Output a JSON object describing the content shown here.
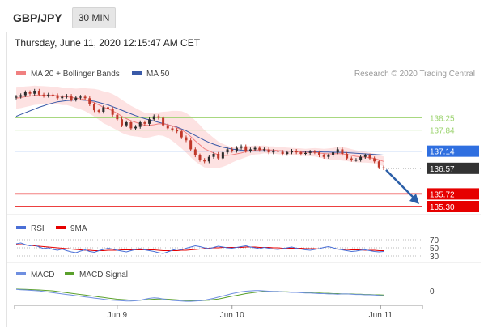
{
  "header": {
    "symbol": "GBP/JPY",
    "interval": "30 MIN",
    "timestamp": "Thursday, June 11, 2020 12:15:47 AM CET"
  },
  "credit": "Research © 2020 Trading Central",
  "colors": {
    "up_candle": "#2b2b2b",
    "down_candle": "#c0392b",
    "ma20": "#f08080",
    "ma50": "#3a5aa8",
    "bollinger_fill": "#fde2e2",
    "resistance": "#9bd36e",
    "pivot": "#2f6fe0",
    "support": "#e60000",
    "last_price": "#333333",
    "arrow": "#2c5fa8",
    "rsi": "#4a6fd6",
    "rsi_ma": "#e60000",
    "macd": "#6f8fe0",
    "macd_signal": "#5aa02c"
  },
  "chart_data": [
    {
      "type": "line",
      "name": "price",
      "legend": [
        {
          "label": "MA 20 + Bollinger Bands",
          "color": "#f08080"
        },
        {
          "label": "MA 50",
          "color": "#3a5aa8"
        }
      ],
      "ylim": [
        135.3,
        139.15
      ],
      "close": [
        138.95,
        139.0,
        139.1,
        139.05,
        139.15,
        139.02,
        138.98,
        139.02,
        139.0,
        138.9,
        138.95,
        138.98,
        138.85,
        138.92,
        138.95,
        138.9,
        138.7,
        138.5,
        138.45,
        138.6,
        138.55,
        138.35,
        138.2,
        138.0,
        138.1,
        137.9,
        137.95,
        138.1,
        138.05,
        138.2,
        138.3,
        138.25,
        138.0,
        137.9,
        137.85,
        137.8,
        137.6,
        137.5,
        137.2,
        137.0,
        136.85,
        136.8,
        136.95,
        137.05,
        136.9,
        137.1,
        137.2,
        137.15,
        137.25,
        137.3,
        137.15,
        137.2,
        137.25,
        137.18,
        137.2,
        137.1,
        137.15,
        137.12,
        137.05,
        137.1,
        137.15,
        137.1,
        137.05,
        137.08,
        137.12,
        137.1,
        137.0,
        136.95,
        137.0,
        137.1,
        137.2,
        137.05,
        136.9,
        136.85,
        136.85,
        136.95,
        137.0,
        136.9,
        136.8,
        136.6,
        136.57
      ],
      "ma20": [
        138.9,
        138.92,
        138.95,
        138.97,
        139.0,
        139.0,
        139.0,
        139.0,
        139.0,
        138.98,
        138.95,
        138.95,
        138.93,
        138.9,
        138.88,
        138.85,
        138.8,
        138.75,
        138.68,
        138.6,
        138.55,
        138.48,
        138.4,
        138.3,
        138.22,
        138.15,
        138.1,
        138.05,
        138.0,
        138.0,
        138.02,
        138.05,
        138.05,
        138.02,
        137.98,
        137.92,
        137.85,
        137.75,
        137.62,
        137.48,
        137.35,
        137.22,
        137.15,
        137.08,
        137.02,
        137.0,
        137.0,
        137.02,
        137.05,
        137.08,
        137.12,
        137.15,
        137.18,
        137.18,
        137.2,
        137.18,
        137.18,
        137.16,
        137.15,
        137.14,
        137.13,
        137.12,
        137.11,
        137.1,
        137.1,
        137.1,
        137.08,
        137.06,
        137.05,
        137.05,
        137.06,
        137.05,
        137.03,
        137.0,
        136.97,
        136.95,
        136.94,
        136.92,
        136.9,
        136.85,
        136.8
      ],
      "ma50": [
        138.3,
        138.36,
        138.42,
        138.48,
        138.54,
        138.6,
        138.65,
        138.7,
        138.74,
        138.78,
        138.8,
        138.82,
        138.83,
        138.84,
        138.84,
        138.83,
        138.82,
        138.8,
        138.76,
        138.72,
        138.68,
        138.62,
        138.56,
        138.5,
        138.44,
        138.38,
        138.32,
        138.27,
        138.22,
        138.18,
        138.14,
        138.1,
        138.06,
        138.02,
        137.98,
        137.94,
        137.88,
        137.82,
        137.74,
        137.66,
        137.58,
        137.5,
        137.43,
        137.37,
        137.32,
        137.27,
        137.24,
        137.21,
        137.19,
        137.17,
        137.16,
        137.15,
        137.15,
        137.15,
        137.15,
        137.15,
        137.15,
        137.15,
        137.15,
        137.14,
        137.14,
        137.14,
        137.13,
        137.13,
        137.13,
        137.12,
        137.12,
        137.11,
        137.11,
        137.1,
        137.1,
        137.1,
        137.09,
        137.08,
        137.07,
        137.06,
        137.05,
        137.04,
        137.03,
        137.02,
        137.01
      ],
      "bb_width": [
        0.35,
        0.35,
        0.34,
        0.33,
        0.32,
        0.31,
        0.3,
        0.29,
        0.28,
        0.28,
        0.28,
        0.28,
        0.3,
        0.32,
        0.35,
        0.38,
        0.42,
        0.46,
        0.5,
        0.53,
        0.55,
        0.56,
        0.56,
        0.55,
        0.53,
        0.5,
        0.47,
        0.44,
        0.42,
        0.4,
        0.38,
        0.38,
        0.4,
        0.44,
        0.5,
        0.56,
        0.62,
        0.66,
        0.68,
        0.68,
        0.66,
        0.62,
        0.56,
        0.5,
        0.44,
        0.38,
        0.32,
        0.26,
        0.22,
        0.2,
        0.18,
        0.16,
        0.15,
        0.14,
        0.13,
        0.12,
        0.12,
        0.12,
        0.12,
        0.12,
        0.12,
        0.12,
        0.12,
        0.12,
        0.13,
        0.14,
        0.15,
        0.16,
        0.18,
        0.2,
        0.22,
        0.22,
        0.22,
        0.21,
        0.2,
        0.19,
        0.18,
        0.17,
        0.16,
        0.16,
        0.16
      ],
      "levels": [
        {
          "label": "138.25",
          "value": 138.25,
          "kind": "resistance"
        },
        {
          "label": "137.84",
          "value": 137.84,
          "kind": "resistance"
        },
        {
          "label": "137.14",
          "value": 137.14,
          "kind": "pivot"
        },
        {
          "label": "136.57",
          "value": 136.57,
          "kind": "last"
        },
        {
          "label": "135.72",
          "value": 135.72,
          "kind": "support"
        },
        {
          "label": "135.30",
          "value": 135.3,
          "kind": "support"
        }
      ],
      "x_ticks": [
        "Jun 9",
        "Jun 10",
        "Jun 11"
      ]
    },
    {
      "type": "line",
      "name": "RSI",
      "legend": [
        {
          "label": "RSI",
          "color": "#4a6fd6"
        },
        {
          "label": "9MA",
          "color": "#e60000"
        }
      ],
      "ylim": [
        30,
        70
      ],
      "tick_labels": [
        "70",
        "50",
        "30"
      ],
      "rsi": [
        60,
        62,
        58,
        55,
        57,
        52,
        48,
        50,
        46,
        44,
        47,
        43,
        40,
        38,
        42,
        45,
        41,
        39,
        43,
        46,
        49,
        47,
        44,
        42,
        40,
        43,
        46,
        48,
        45,
        43,
        41,
        38,
        36,
        40,
        44,
        47,
        45,
        49,
        52,
        55,
        53,
        50,
        48,
        51,
        54,
        52,
        50,
        49,
        51,
        53,
        55,
        52,
        50,
        48,
        51,
        49,
        47,
        46,
        48,
        50,
        52,
        49,
        47,
        45,
        44,
        46,
        48,
        51,
        53,
        50,
        47,
        45,
        43,
        41,
        42,
        44,
        45,
        43,
        41,
        40,
        41
      ],
      "ma9": [
        58,
        58,
        57,
        56,
        55,
        54,
        53,
        52,
        51,
        50,
        49,
        48,
        47,
        46,
        45,
        44,
        44,
        43,
        43,
        43,
        44,
        44,
        44,
        45,
        45,
        45,
        45,
        45,
        45,
        45,
        45,
        44,
        43,
        43,
        43,
        43,
        44,
        44,
        45,
        46,
        47,
        48,
        49,
        50,
        50,
        51,
        51,
        51,
        51,
        51,
        52,
        52,
        52,
        51,
        51,
        51,
        50,
        50,
        49,
        49,
        49,
        49,
        49,
        48,
        48,
        48,
        47,
        47,
        47,
        47,
        47,
        46,
        46,
        45,
        45,
        45,
        44,
        44,
        44,
        43,
        43
      ]
    },
    {
      "type": "line",
      "name": "MACD",
      "legend": [
        {
          "label": "MACD",
          "color": "#6f8fe0"
        },
        {
          "label": "MACD Signal",
          "color": "#5aa02c"
        }
      ],
      "ylim": [
        -0.4,
        0.3
      ],
      "tick_labels": [
        "0"
      ],
      "macd": [
        0.05,
        0.04,
        0.03,
        0.02,
        0.01,
        0.0,
        -0.02,
        -0.04,
        -0.06,
        -0.08,
        -0.1,
        -0.12,
        -0.14,
        -0.16,
        -0.18,
        -0.2,
        -0.22,
        -0.24,
        -0.26,
        -0.28,
        -0.3,
        -0.31,
        -0.32,
        -0.33,
        -0.34,
        -0.34,
        -0.33,
        -0.31,
        -0.28,
        -0.25,
        -0.23,
        -0.24,
        -0.27,
        -0.3,
        -0.32,
        -0.33,
        -0.34,
        -0.35,
        -0.35,
        -0.34,
        -0.33,
        -0.31,
        -0.28,
        -0.25,
        -0.21,
        -0.17,
        -0.13,
        -0.09,
        -0.06,
        -0.03,
        -0.01,
        0.0,
        0.01,
        0.01,
        0.0,
        -0.01,
        -0.02,
        -0.02,
        -0.03,
        -0.04,
        -0.05,
        -0.05,
        -0.06,
        -0.07,
        -0.07,
        -0.08,
        -0.09,
        -0.09,
        -0.1,
        -0.1,
        -0.11,
        -0.1,
        -0.1,
        -0.11,
        -0.12,
        -0.12,
        -0.13,
        -0.13,
        -0.14,
        -0.15,
        -0.16
      ],
      "signal": [
        0.06,
        0.055,
        0.05,
        0.045,
        0.04,
        0.03,
        0.02,
        0.01,
        0.0,
        -0.02,
        -0.04,
        -0.06,
        -0.08,
        -0.1,
        -0.12,
        -0.14,
        -0.16,
        -0.18,
        -0.2,
        -0.22,
        -0.24,
        -0.26,
        -0.28,
        -0.29,
        -0.3,
        -0.31,
        -0.31,
        -0.31,
        -0.3,
        -0.29,
        -0.28,
        -0.27,
        -0.27,
        -0.28,
        -0.29,
        -0.3,
        -0.31,
        -0.32,
        -0.33,
        -0.33,
        -0.33,
        -0.32,
        -0.31,
        -0.29,
        -0.27,
        -0.24,
        -0.21,
        -0.18,
        -0.15,
        -0.12,
        -0.09,
        -0.07,
        -0.05,
        -0.03,
        -0.02,
        -0.02,
        -0.02,
        -0.02,
        -0.03,
        -0.03,
        -0.04,
        -0.04,
        -0.05,
        -0.05,
        -0.06,
        -0.07,
        -0.07,
        -0.08,
        -0.08,
        -0.09,
        -0.09,
        -0.1,
        -0.1,
        -0.1,
        -0.11,
        -0.11,
        -0.12,
        -0.12,
        -0.13,
        -0.13,
        -0.14
      ]
    }
  ]
}
